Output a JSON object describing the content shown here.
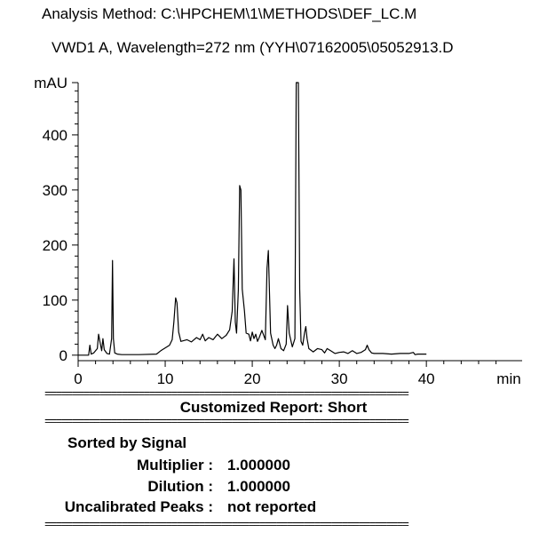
{
  "header": {
    "method_line": "Analysis Method: C:\\HPCHEM\\1\\METHODS\\DEF_LC.M",
    "signal_line": "VWD1 A, Wavelength=272 nm (YYH\\07162005\\05052913.D"
  },
  "chart_data": {
    "type": "line",
    "title": "",
    "xlabel": "min",
    "ylabel": "mAU",
    "xlim": [
      0,
      51
    ],
    "ylim": [
      -10,
      495
    ],
    "x_ticks": [
      0,
      10,
      20,
      30,
      40
    ],
    "y_ticks": [
      0,
      100,
      200,
      300,
      400
    ],
    "series": [
      {
        "color": "#000000",
        "x": [
          0.0,
          1.2,
          1.35,
          1.5,
          1.8,
          2.2,
          2.35,
          2.5,
          2.7,
          2.85,
          3.0,
          3.3,
          3.6,
          3.85,
          3.95,
          4.05,
          4.2,
          4.5,
          5.0,
          7.0,
          9.0,
          9.5,
          10.5,
          10.8,
          11.0,
          11.2,
          11.35,
          11.55,
          11.8,
          12.5,
          13.0,
          13.6,
          14.0,
          14.3,
          14.6,
          15.0,
          15.5,
          16.0,
          16.5,
          17.0,
          17.4,
          17.7,
          17.9,
          18.05,
          18.2,
          18.4,
          18.55,
          18.7,
          18.85,
          19.1,
          19.3,
          19.6,
          19.8,
          20.0,
          20.2,
          20.4,
          20.6,
          20.8,
          21.1,
          21.5,
          21.7,
          21.85,
          22.1,
          22.4,
          22.6,
          22.8,
          23.0,
          23.3,
          23.6,
          23.9,
          24.05,
          24.25,
          24.6,
          24.9,
          25.05,
          25.15,
          25.3,
          25.45,
          25.6,
          25.8,
          26.0,
          26.15,
          26.3,
          26.5,
          27.0,
          27.5,
          28.0,
          28.3,
          28.6,
          29.0,
          29.5,
          30.0,
          30.5,
          31.0,
          31.5,
          32.0,
          32.5,
          33.0,
          33.2,
          33.4,
          33.7,
          34.0,
          35.0,
          36.0,
          37.0,
          38.0,
          38.5,
          38.7,
          39.0,
          40.0
        ],
        "y": [
          0,
          0,
          18,
          2,
          4,
          12,
          38,
          25,
          8,
          30,
          10,
          3,
          2,
          30,
          172,
          30,
          4,
          2,
          1,
          1,
          2,
          8,
          18,
          28,
          60,
          104,
          95,
          42,
          25,
          28,
          24,
          32,
          28,
          38,
          26,
          32,
          28,
          38,
          30,
          36,
          46,
          80,
          175,
          60,
          40,
          118,
          308,
          300,
          120,
          80,
          40,
          38,
          26,
          42,
          30,
          38,
          25,
          32,
          45,
          28,
          158,
          190,
          40,
          18,
          12,
          18,
          30,
          12,
          8,
          20,
          90,
          40,
          15,
          30,
          495,
          495,
          495,
          120,
          25,
          18,
          40,
          52,
          30,
          12,
          6,
          12,
          10,
          4,
          12,
          8,
          3,
          5,
          6,
          3,
          8,
          3,
          5,
          10,
          18,
          10,
          4,
          3,
          3,
          2,
          3,
          3,
          5,
          1,
          2,
          2
        ]
      }
    ]
  },
  "report": {
    "separator": "==================================================================",
    "title": "Customized Report: Short",
    "sorted_by": "Sorted by Signal",
    "multiplier_label": "Multiplier",
    "multiplier_value": "1.000000",
    "dilution_label": "Dilution",
    "dilution_value": "1.000000",
    "uncal_label": "Uncalibrated Peaks",
    "uncal_value": "not reported",
    "colon": ":"
  }
}
